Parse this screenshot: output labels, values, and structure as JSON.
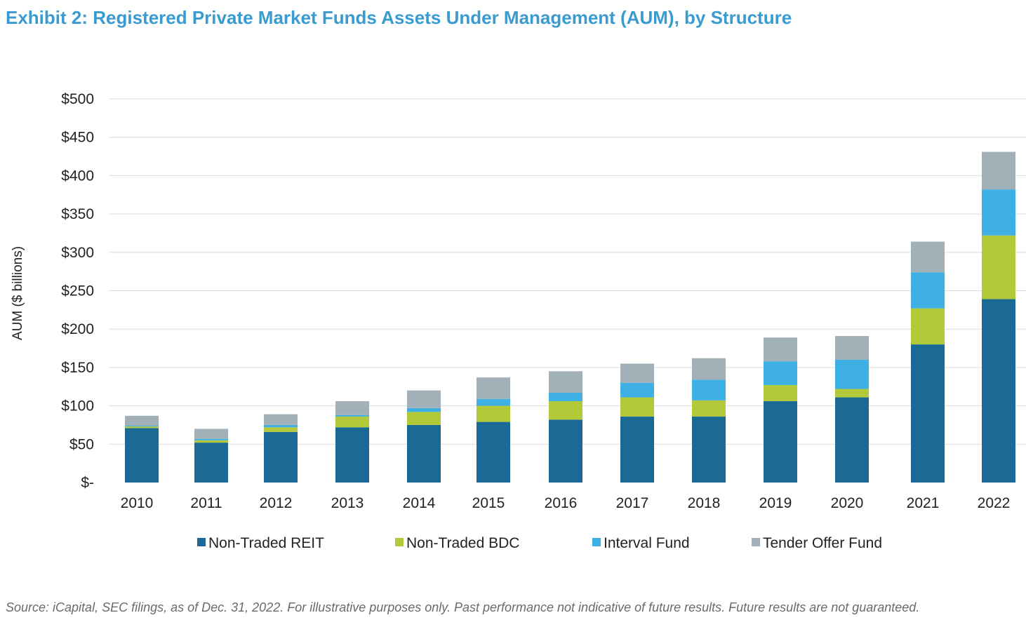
{
  "title": "Exhibit 2: Registered Private Market Funds Assets Under Management (AUM), by Structure",
  "source": "Source: iCapital, SEC filings, as of Dec. 31, 2022. For illustrative purposes only. Past performance not indicative of future results. Future results are not guaranteed.",
  "chart_data": {
    "type": "bar",
    "stacked": true,
    "title": "",
    "xlabel": "",
    "ylabel": "AUM ($ billions)",
    "ylim": [
      0,
      500
    ],
    "yticks": [
      0,
      50,
      100,
      150,
      200,
      250,
      300,
      350,
      400,
      450,
      500
    ],
    "ytick_labels": [
      "$-",
      "$50",
      "$100",
      "$150",
      "$200",
      "$250",
      "$300",
      "$350",
      "$400",
      "$450",
      "$500"
    ],
    "grid": "horizontal",
    "legend": "bottom",
    "categories": [
      "2010",
      "2011",
      "2012",
      "2013",
      "2014",
      "2015",
      "2016",
      "2017",
      "2018",
      "2019",
      "2020",
      "2021",
      "2022"
    ],
    "series": [
      {
        "name": "Non-Traded REIT",
        "color": "#1b6a96",
        "values": [
          71,
          52,
          66,
          72,
          75,
          79,
          82,
          86,
          86,
          106,
          111,
          180,
          239
        ]
      },
      {
        "name": "Non-Traded BDC",
        "color": "#b3c93a",
        "values": [
          2,
          3,
          6,
          14,
          17,
          21,
          24,
          25,
          21,
          21,
          11,
          47,
          83
        ]
      },
      {
        "name": "Interval Fund",
        "color": "#3fb0e3",
        "values": [
          1,
          2,
          3,
          2,
          5,
          9,
          11,
          19,
          27,
          31,
          38,
          47,
          60
        ]
      },
      {
        "name": "Tender Offer Fund",
        "color": "#a2b0b8",
        "values": [
          13,
          13,
          14,
          18,
          23,
          28,
          28,
          25,
          28,
          31,
          31,
          40,
          49
        ]
      }
    ]
  }
}
